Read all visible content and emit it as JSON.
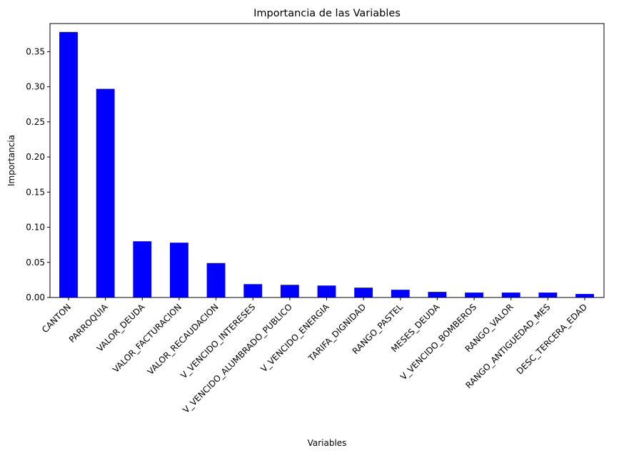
{
  "chart_data": {
    "type": "bar",
    "title": "Importancia de las Variables",
    "xlabel": "Variables",
    "ylabel": "Importancia",
    "categories": [
      "CANTON",
      "PARROQUIA",
      "VALOR_DEUDA",
      "VALOR_FACTURACION",
      "VALOR_RECAUDACION",
      "V_VENCIDO_INTERESES",
      "V_VENCIDO_ALUMBRADO_PUBLICO",
      "V_VENCIDO_ENERGIA",
      "TARIFA_DIGNIDAD",
      "RANGO_PASTEL",
      "MESES_DEUDA",
      "V_VENCIDO_BOMBEROS",
      "RANGO_VALOR",
      "RANGO_ANTIGUEDAD_MES",
      "DESC_TERCERA_EDAD"
    ],
    "values": [
      0.378,
      0.297,
      0.08,
      0.078,
      0.049,
      0.019,
      0.018,
      0.017,
      0.014,
      0.011,
      0.008,
      0.007,
      0.007,
      0.007,
      0.005
    ],
    "ylim": [
      0,
      0.39
    ],
    "yticks": [
      0.0,
      0.05,
      0.1,
      0.15,
      0.2,
      0.25,
      0.3,
      0.35
    ],
    "ytick_labels": [
      "0.00",
      "0.05",
      "0.10",
      "0.15",
      "0.20",
      "0.25",
      "0.30",
      "0.35"
    ],
    "bar_color": "#0000ff",
    "grid": false,
    "legend": "none"
  }
}
